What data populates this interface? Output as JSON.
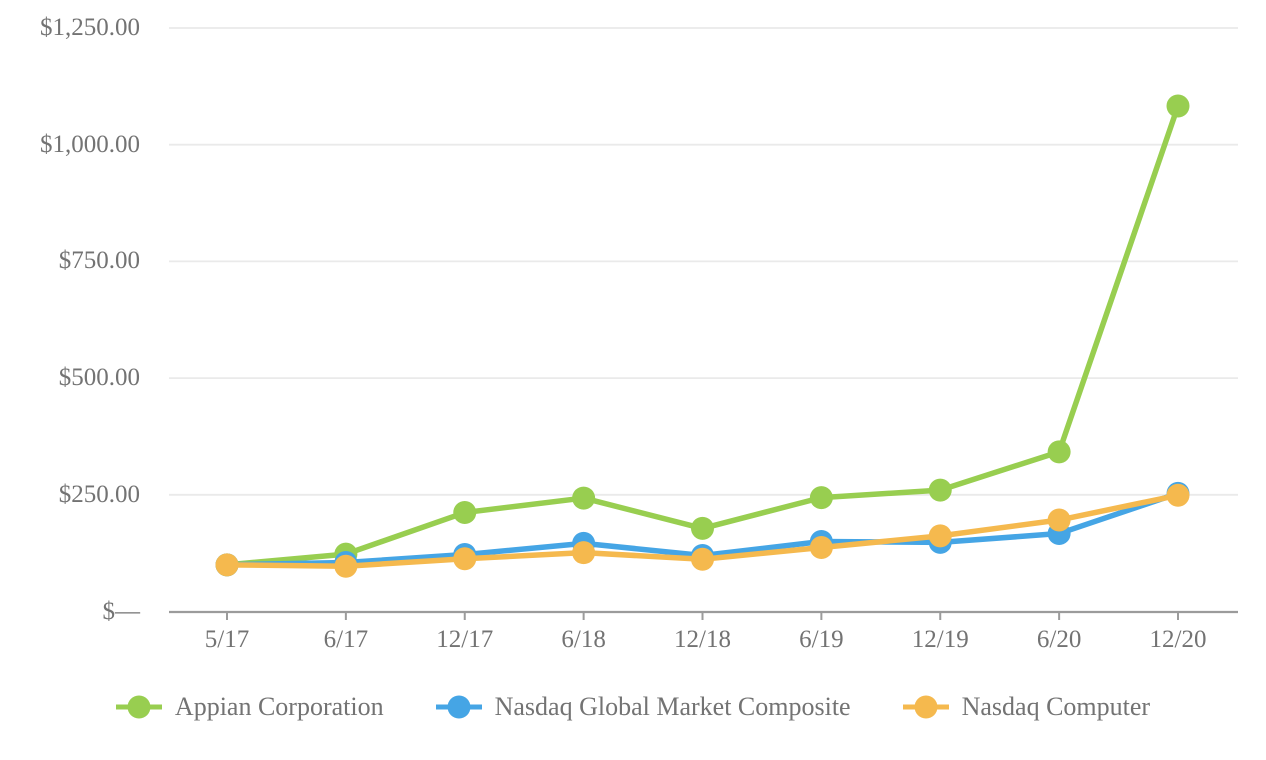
{
  "chart_data": {
    "type": "line",
    "x": [
      "5/17",
      "6/17",
      "12/17",
      "6/18",
      "12/18",
      "6/19",
      "12/19",
      "6/20",
      "12/20"
    ],
    "series": [
      {
        "name": "Appian Corporation",
        "color": "#98CE50",
        "values": [
          100,
          123,
          212,
          243,
          178,
          244,
          260,
          342,
          1083
        ]
      },
      {
        "name": "Nasdaq Global Market Composite",
        "color": "#45A5E5",
        "values": [
          100,
          105,
          122,
          146,
          120,
          150,
          148,
          167,
          253
        ]
      },
      {
        "name": "Nasdaq Computer",
        "color": "#F5B94E",
        "values": [
          100,
          97,
          113,
          126,
          112,
          137,
          162,
          196,
          249
        ]
      }
    ],
    "y_axis": {
      "labels": [
        "$—",
        "$250.00",
        "$500.00",
        "$750.00",
        "$1,000.00",
        "$1,250.00"
      ],
      "values": [
        0,
        250,
        500,
        750,
        1000,
        1250
      ],
      "min": 0,
      "max": 1250
    },
    "grid": true,
    "legend_position": "bottom",
    "marker": "circle-with-line"
  },
  "styles": {
    "grid_color": "#EAEAEA",
    "axis_color": "#9B9B9B",
    "label_color": "#737373",
    "background": "#FFFFFF"
  }
}
